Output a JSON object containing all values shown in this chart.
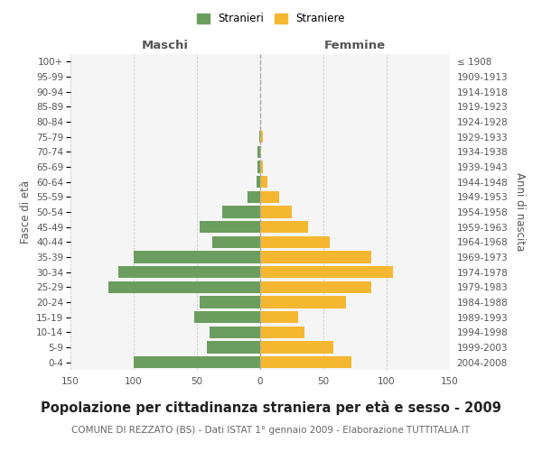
{
  "age_groups": [
    "0-4",
    "5-9",
    "10-14",
    "15-19",
    "20-24",
    "25-29",
    "30-34",
    "35-39",
    "40-44",
    "45-49",
    "50-54",
    "55-59",
    "60-64",
    "65-69",
    "70-74",
    "75-79",
    "80-84",
    "85-89",
    "90-94",
    "95-99",
    "100+"
  ],
  "birth_years": [
    "2004-2008",
    "1999-2003",
    "1994-1998",
    "1989-1993",
    "1984-1988",
    "1979-1983",
    "1974-1978",
    "1969-1973",
    "1964-1968",
    "1959-1963",
    "1954-1958",
    "1949-1953",
    "1944-1948",
    "1939-1943",
    "1934-1938",
    "1929-1933",
    "1924-1928",
    "1919-1923",
    "1914-1918",
    "1909-1913",
    "≤ 1908"
  ],
  "males": [
    100,
    42,
    40,
    52,
    48,
    120,
    112,
    100,
    38,
    48,
    30,
    10,
    3,
    2,
    2,
    1,
    0,
    0,
    0,
    0,
    0
  ],
  "females": [
    72,
    58,
    35,
    30,
    68,
    88,
    105,
    88,
    55,
    38,
    25,
    15,
    6,
    2,
    1,
    2,
    0,
    0,
    0,
    0,
    0
  ],
  "male_color": "#6b9e5e",
  "female_color": "#f5b730",
  "background_color": "#f5f5f5",
  "grid_color": "#cccccc",
  "title": "Popolazione per cittadinanza straniera per età e sesso - 2009",
  "subtitle": "COMUNE DI REZZATO (BS) - Dati ISTAT 1° gennaio 2009 - Elaborazione TUTTITALIA.IT",
  "xlabel_left": "Maschi",
  "xlabel_right": "Femmine",
  "ylabel_left": "Fasce di età",
  "ylabel_right": "Anni di nascita",
  "legend_male": "Stranieri",
  "legend_female": "Straniere",
  "xlim": 150,
  "title_fontsize": 10.5,
  "subtitle_fontsize": 7.5,
  "tick_fontsize": 7.5,
  "label_fontsize": 8.5
}
